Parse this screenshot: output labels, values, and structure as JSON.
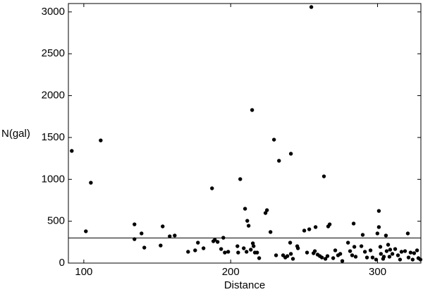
{
  "chart_data": {
    "type": "scatter",
    "x_label": "Distance",
    "y_label": "N(gal)",
    "color": "#000000",
    "reference_line": 300,
    "xlim": [
      89.5,
      329.5
    ],
    "ylim": [
      0,
      3100
    ],
    "xticks": [
      100,
      200,
      300
    ],
    "yticks": [
      0,
      500,
      1000,
      1500,
      2000,
      2500,
      3000
    ],
    "x": [
      91.8,
      101.4,
      104.8,
      111.5,
      134.5,
      134.5,
      139.3,
      141.2,
      152.3,
      153.7,
      158.5,
      161.9,
      171,
      175.8,
      177.7,
      181.5,
      187.3,
      188.2,
      189.2,
      191.1,
      193.5,
      195,
      196,
      198.3,
      204.6,
      205.1,
      206.5,
      208.9,
      209.8,
      210.8,
      211.3,
      212.2,
      213.7,
      214.6,
      215.1,
      215.6,
      216.5,
      218,
      219.4,
      223.7,
      224.7,
      227.1,
      229.5,
      230.9,
      232.9,
      235.7,
      237.2,
      238.6,
      240.5,
      241,
      241,
      242.4,
      245.3,
      245.8,
      250.1,
      252,
      253.5,
      254.9,
      256.4,
      257.3,
      257.8,
      259.2,
      260.7,
      262.1,
      263.5,
      264.5,
      265.9,
      266.4,
      267.4,
      269.8,
      271.2,
      273.1,
      274.6,
      276,
      279.9,
      281.3,
      282.7,
      283.7,
      284.2,
      285.1,
      289,
      289.9,
      291.4,
      292.8,
      295.2,
      296.6,
      299,
      299.9,
      300.9,
      300.9,
      301.9,
      302.3,
      303.8,
      304.3,
      305.7,
      306.2,
      307.2,
      308.1,
      308.6,
      310.1,
      312,
      313.9,
      315.3,
      316.3,
      318.7,
      320.6,
      321.1,
      322.5,
      323.9,
      324.9,
      326.9,
      327.8,
      329.2
    ],
    "values": [
      1340,
      380,
      960,
      1465,
      463,
      286,
      354,
      185,
      210,
      438,
      320,
      329,
      135,
      152,
      244,
      177,
      893,
      261,
      278,
      253,
      168,
      303,
      126,
      135,
      202,
      126,
      1003,
      177,
      649,
      135,
      505,
      446,
      160,
      1828,
      236,
      202,
      126,
      126,
      59,
      598,
      632,
      371,
      1474,
      93,
      1222,
      93,
      67,
      84,
      244,
      1306,
      110,
      51,
      202,
      177,
      388,
      126,
      404,
      3058,
      118,
      143,
      430,
      101,
      84,
      67,
      1036,
      51,
      84,
      438,
      463,
      59,
      152,
      93,
      110,
      25,
      244,
      143,
      93,
      472,
      194,
      76,
      202,
      337,
      135,
      67,
      152,
      67,
      42,
      354,
      623,
      430,
      194,
      110,
      51,
      76,
      329,
      143,
      219,
      76,
      160,
      110,
      168,
      93,
      42,
      135,
      143,
      354,
      67,
      126,
      42,
      118,
      152,
      59,
      42
    ]
  }
}
